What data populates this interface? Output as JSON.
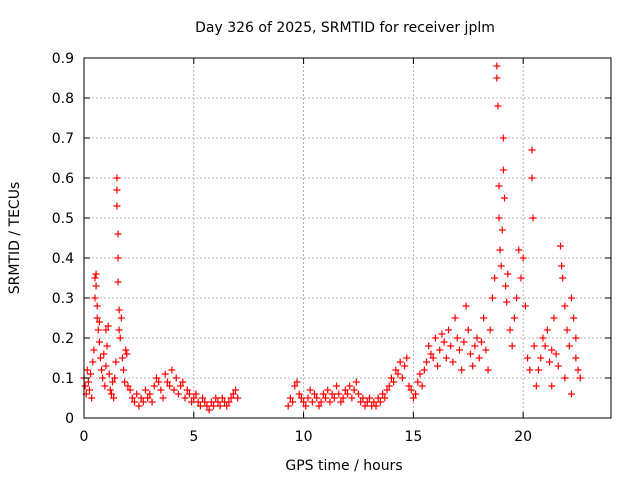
{
  "chart_data": {
    "type": "scatter",
    "title": "Day 326 of 2025, SRMTID for receiver jplm",
    "xlabel": "GPS time / hours",
    "ylabel": "SRMTID / TECUs",
    "xlim": [
      0,
      24
    ],
    "ylim": [
      0,
      0.9
    ],
    "xticks": [
      0,
      5,
      10,
      15,
      20
    ],
    "xtick_labels": [
      "0",
      "5",
      "10",
      "15",
      "20"
    ],
    "yticks": [
      0,
      0.1,
      0.2,
      0.3,
      0.4,
      0.5,
      0.6,
      0.7,
      0.8,
      0.9
    ],
    "ytick_labels": [
      "0",
      "0.1",
      "0.2",
      "0.3",
      "0.4",
      "0.5",
      "0.6",
      "0.7",
      "0.8",
      "0.9"
    ],
    "grid": true,
    "marker": "plus",
    "series": [
      {
        "name": "SRMTID",
        "color": "#ff0000",
        "points": [
          [
            0.0,
            0.1
          ],
          [
            0.05,
            0.08
          ],
          [
            0.1,
            0.06
          ],
          [
            0.15,
            0.12
          ],
          [
            0.2,
            0.09
          ],
          [
            0.25,
            0.07
          ],
          [
            0.3,
            0.11
          ],
          [
            0.35,
            0.05
          ],
          [
            0.4,
            0.14
          ],
          [
            0.45,
            0.17
          ],
          [
            0.5,
            0.3
          ],
          [
            0.5,
            0.35
          ],
          [
            0.55,
            0.36
          ],
          [
            0.55,
            0.33
          ],
          [
            0.6,
            0.25
          ],
          [
            0.6,
            0.28
          ],
          [
            0.65,
            0.22
          ],
          [
            0.7,
            0.19
          ],
          [
            0.7,
            0.24
          ],
          [
            0.75,
            0.15
          ],
          [
            0.8,
            0.12
          ],
          [
            0.85,
            0.1
          ],
          [
            0.9,
            0.16
          ],
          [
            0.95,
            0.08
          ],
          [
            1.0,
            0.13
          ],
          [
            1.0,
            0.22
          ],
          [
            1.05,
            0.18
          ],
          [
            1.1,
            0.23
          ],
          [
            1.15,
            0.11
          ],
          [
            1.2,
            0.07
          ],
          [
            1.25,
            0.06
          ],
          [
            1.3,
            0.09
          ],
          [
            1.35,
            0.05
          ],
          [
            1.4,
            0.1
          ],
          [
            1.45,
            0.14
          ],
          [
            1.5,
            0.6
          ],
          [
            1.5,
            0.57
          ],
          [
            1.5,
            0.53
          ],
          [
            1.55,
            0.46
          ],
          [
            1.55,
            0.4
          ],
          [
            1.55,
            0.34
          ],
          [
            1.6,
            0.27
          ],
          [
            1.6,
            0.22
          ],
          [
            1.65,
            0.2
          ],
          [
            1.7,
            0.25
          ],
          [
            1.75,
            0.15
          ],
          [
            1.8,
            0.12
          ],
          [
            1.85,
            0.09
          ],
          [
            1.9,
            0.17
          ],
          [
            1.95,
            0.16
          ],
          [
            2.0,
            0.08
          ],
          [
            2.1,
            0.07
          ],
          [
            2.2,
            0.05
          ],
          [
            2.3,
            0.04
          ],
          [
            2.4,
            0.06
          ],
          [
            2.5,
            0.03
          ],
          [
            2.6,
            0.05
          ],
          [
            2.7,
            0.04
          ],
          [
            2.8,
            0.07
          ],
          [
            2.9,
            0.05
          ],
          [
            3.0,
            0.06
          ],
          [
            3.1,
            0.04
          ],
          [
            3.2,
            0.08
          ],
          [
            3.3,
            0.1
          ],
          [
            3.4,
            0.09
          ],
          [
            3.5,
            0.07
          ],
          [
            3.6,
            0.05
          ],
          [
            3.7,
            0.11
          ],
          [
            3.8,
            0.09
          ],
          [
            3.9,
            0.08
          ],
          [
            4.0,
            0.12
          ],
          [
            4.1,
            0.07
          ],
          [
            4.2,
            0.1
          ],
          [
            4.3,
            0.06
          ],
          [
            4.4,
            0.08
          ],
          [
            4.5,
            0.09
          ],
          [
            4.6,
            0.05
          ],
          [
            4.7,
            0.07
          ],
          [
            4.8,
            0.06
          ],
          [
            4.9,
            0.04
          ],
          [
            5.0,
            0.05
          ],
          [
            5.1,
            0.06
          ],
          [
            5.2,
            0.04
          ],
          [
            5.3,
            0.03
          ],
          [
            5.4,
            0.05
          ],
          [
            5.5,
            0.04
          ],
          [
            5.6,
            0.03
          ],
          [
            5.7,
            0.02
          ],
          [
            5.8,
            0.04
          ],
          [
            5.9,
            0.03
          ],
          [
            6.0,
            0.05
          ],
          [
            6.1,
            0.04
          ],
          [
            6.2,
            0.03
          ],
          [
            6.3,
            0.05
          ],
          [
            6.4,
            0.04
          ],
          [
            6.5,
            0.03
          ],
          [
            6.6,
            0.04
          ],
          [
            6.7,
            0.05
          ],
          [
            6.8,
            0.06
          ],
          [
            6.9,
            0.07
          ],
          [
            7.0,
            0.05
          ],
          [
            9.3,
            0.03
          ],
          [
            9.4,
            0.05
          ],
          [
            9.5,
            0.04
          ],
          [
            9.6,
            0.08
          ],
          [
            9.7,
            0.09
          ],
          [
            9.8,
            0.06
          ],
          [
            9.9,
            0.05
          ],
          [
            10.0,
            0.04
          ],
          [
            10.1,
            0.03
          ],
          [
            10.2,
            0.05
          ],
          [
            10.3,
            0.07
          ],
          [
            10.4,
            0.04
          ],
          [
            10.5,
            0.06
          ],
          [
            10.6,
            0.05
          ],
          [
            10.7,
            0.03
          ],
          [
            10.8,
            0.04
          ],
          [
            10.9,
            0.06
          ],
          [
            11.0,
            0.05
          ],
          [
            11.1,
            0.07
          ],
          [
            11.2,
            0.04
          ],
          [
            11.3,
            0.06
          ],
          [
            11.4,
            0.05
          ],
          [
            11.5,
            0.08
          ],
          [
            11.6,
            0.06
          ],
          [
            11.7,
            0.04
          ],
          [
            11.8,
            0.05
          ],
          [
            11.9,
            0.07
          ],
          [
            12.0,
            0.06
          ],
          [
            12.1,
            0.08
          ],
          [
            12.2,
            0.05
          ],
          [
            12.3,
            0.07
          ],
          [
            12.4,
            0.09
          ],
          [
            12.5,
            0.06
          ],
          [
            12.6,
            0.04
          ],
          [
            12.7,
            0.05
          ],
          [
            12.8,
            0.03
          ],
          [
            12.9,
            0.04
          ],
          [
            13.0,
            0.05
          ],
          [
            13.1,
            0.03
          ],
          [
            13.2,
            0.04
          ],
          [
            13.3,
            0.03
          ],
          [
            13.4,
            0.05
          ],
          [
            13.5,
            0.04
          ],
          [
            13.6,
            0.06
          ],
          [
            13.7,
            0.05
          ],
          [
            13.8,
            0.07
          ],
          [
            13.9,
            0.08
          ],
          [
            14.0,
            0.1
          ],
          [
            14.1,
            0.09
          ],
          [
            14.2,
            0.12
          ],
          [
            14.3,
            0.11
          ],
          [
            14.4,
            0.14
          ],
          [
            14.5,
            0.1
          ],
          [
            14.6,
            0.13
          ],
          [
            14.7,
            0.15
          ],
          [
            14.8,
            0.08
          ],
          [
            14.9,
            0.07
          ],
          [
            15.0,
            0.05
          ],
          [
            15.1,
            0.06
          ],
          [
            15.2,
            0.09
          ],
          [
            15.3,
            0.11
          ],
          [
            15.4,
            0.08
          ],
          [
            15.5,
            0.12
          ],
          [
            15.6,
            0.14
          ],
          [
            15.7,
            0.18
          ],
          [
            15.8,
            0.16
          ],
          [
            15.9,
            0.15
          ],
          [
            16.0,
            0.2
          ],
          [
            16.1,
            0.13
          ],
          [
            16.2,
            0.17
          ],
          [
            16.3,
            0.21
          ],
          [
            16.4,
            0.19
          ],
          [
            16.5,
            0.15
          ],
          [
            16.6,
            0.22
          ],
          [
            16.7,
            0.18
          ],
          [
            16.8,
            0.14
          ],
          [
            16.9,
            0.25
          ],
          [
            17.0,
            0.2
          ],
          [
            17.1,
            0.17
          ],
          [
            17.2,
            0.12
          ],
          [
            17.3,
            0.19
          ],
          [
            17.4,
            0.28
          ],
          [
            17.5,
            0.22
          ],
          [
            17.6,
            0.16
          ],
          [
            17.7,
            0.13
          ],
          [
            17.8,
            0.18
          ],
          [
            17.9,
            0.2
          ],
          [
            18.0,
            0.15
          ],
          [
            18.1,
            0.19
          ],
          [
            18.2,
            0.25
          ],
          [
            18.3,
            0.17
          ],
          [
            18.4,
            0.12
          ],
          [
            18.5,
            0.22
          ],
          [
            18.6,
            0.3
          ],
          [
            18.7,
            0.35
          ],
          [
            18.8,
            0.88
          ],
          [
            18.8,
            0.85
          ],
          [
            18.85,
            0.78
          ],
          [
            18.9,
            0.58
          ],
          [
            18.9,
            0.5
          ],
          [
            18.95,
            0.42
          ],
          [
            19.0,
            0.38
          ],
          [
            19.05,
            0.47
          ],
          [
            19.1,
            0.7
          ],
          [
            19.1,
            0.62
          ],
          [
            19.15,
            0.55
          ],
          [
            19.2,
            0.33
          ],
          [
            19.25,
            0.29
          ],
          [
            19.3,
            0.36
          ],
          [
            19.4,
            0.22
          ],
          [
            19.5,
            0.18
          ],
          [
            19.6,
            0.25
          ],
          [
            19.7,
            0.3
          ],
          [
            19.8,
            0.42
          ],
          [
            19.9,
            0.35
          ],
          [
            20.0,
            0.4
          ],
          [
            20.1,
            0.28
          ],
          [
            20.2,
            0.15
          ],
          [
            20.3,
            0.12
          ],
          [
            20.4,
            0.67
          ],
          [
            20.4,
            0.6
          ],
          [
            20.45,
            0.5
          ],
          [
            20.5,
            0.18
          ],
          [
            20.6,
            0.08
          ],
          [
            20.7,
            0.12
          ],
          [
            20.8,
            0.15
          ],
          [
            20.9,
            0.2
          ],
          [
            21.0,
            0.18
          ],
          [
            21.1,
            0.22
          ],
          [
            21.2,
            0.14
          ],
          [
            21.3,
            0.17
          ],
          [
            21.4,
            0.25
          ],
          [
            21.5,
            0.16
          ],
          [
            21.6,
            0.13
          ],
          [
            21.7,
            0.43
          ],
          [
            21.75,
            0.38
          ],
          [
            21.8,
            0.35
          ],
          [
            21.9,
            0.28
          ],
          [
            22.0,
            0.22
          ],
          [
            22.1,
            0.18
          ],
          [
            22.2,
            0.3
          ],
          [
            22.3,
            0.25
          ],
          [
            22.4,
            0.15
          ],
          [
            22.5,
            0.12
          ],
          [
            22.6,
            0.1
          ],
          [
            22.2,
            0.06
          ],
          [
            22.4,
            0.2
          ],
          [
            21.9,
            0.1
          ],
          [
            21.3,
            0.08
          ]
        ]
      }
    ]
  }
}
